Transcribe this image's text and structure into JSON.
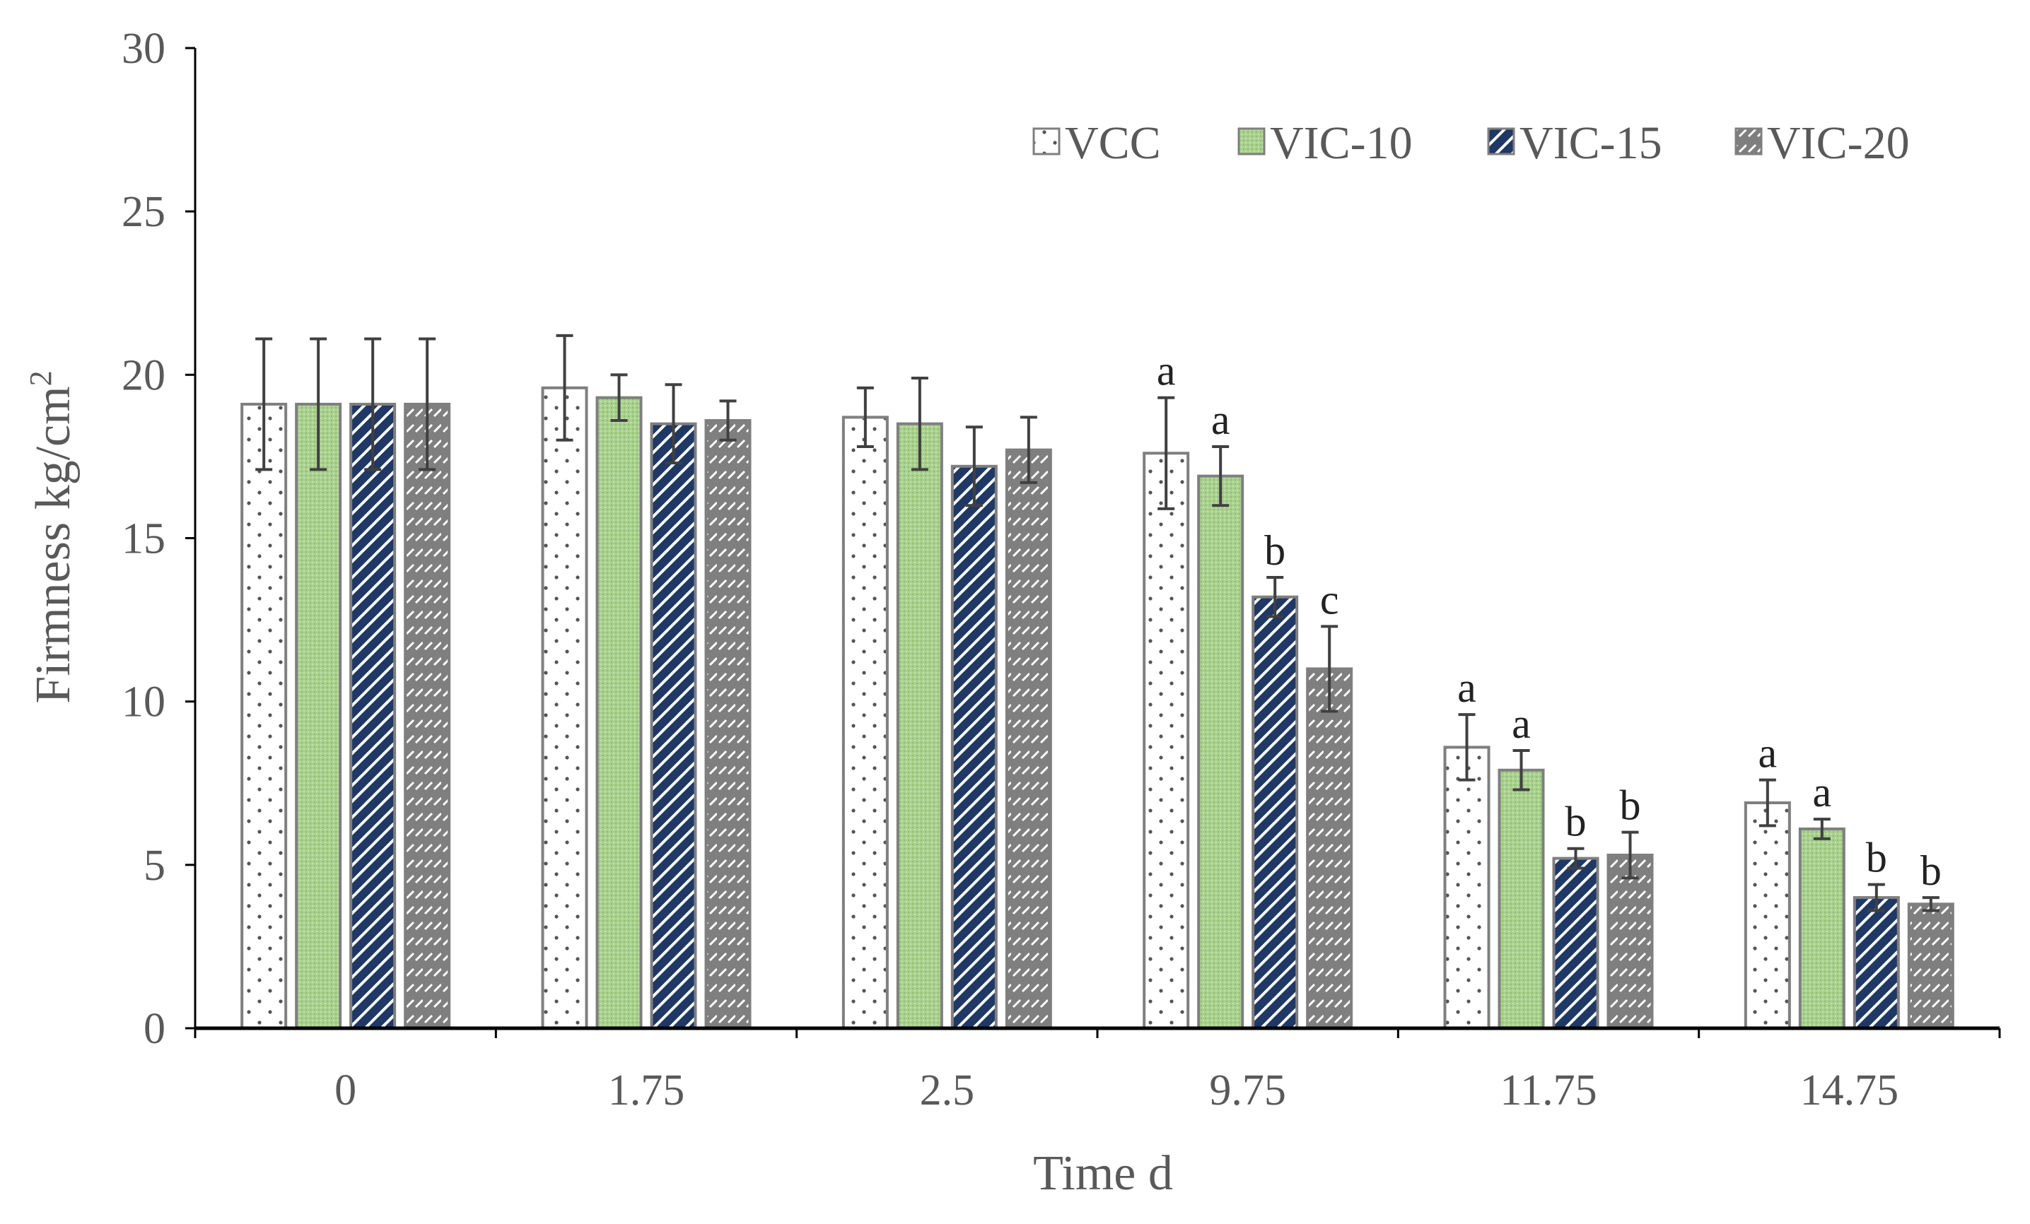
{
  "chart_data": {
    "type": "bar",
    "title": "",
    "xlabel": "Time d",
    "ylabel_main": "Firmness kg/cm",
    "ylabel_sup": "2",
    "ylim": [
      0,
      30
    ],
    "yticks": [
      0,
      5,
      10,
      15,
      20,
      25,
      30
    ],
    "categories": [
      "0",
      "1.75",
      "2.5",
      "9.75",
      "11.75",
      "14.75"
    ],
    "legend_position": "top-right",
    "series": [
      {
        "name": "VCC",
        "pattern": "dots",
        "values": [
          19.1,
          19.6,
          18.7,
          17.6,
          8.6,
          6.9
        ],
        "errors": [
          2.0,
          1.6,
          0.9,
          1.7,
          1.0,
          0.7
        ],
        "sig": [
          "",
          "",
          "",
          "a",
          "a",
          "a"
        ]
      },
      {
        "name": "VIC-10",
        "pattern": "green",
        "values": [
          19.1,
          19.3,
          18.5,
          16.9,
          7.9,
          6.1
        ],
        "errors": [
          2.0,
          0.7,
          1.4,
          0.9,
          0.6,
          0.3
        ],
        "sig": [
          "",
          "",
          "",
          "a",
          "a",
          "a"
        ]
      },
      {
        "name": "VIC-15",
        "pattern": "navy-stripes",
        "values": [
          19.1,
          18.5,
          17.2,
          13.2,
          5.2,
          4.0
        ],
        "errors": [
          2.0,
          1.2,
          1.2,
          0.6,
          0.3,
          0.4
        ],
        "sig": [
          "",
          "",
          "",
          "b",
          "b",
          "b"
        ]
      },
      {
        "name": "VIC-20",
        "pattern": "grey-dashes",
        "values": [
          19.1,
          18.6,
          17.7,
          11.0,
          5.3,
          3.8
        ],
        "errors": [
          2.0,
          0.6,
          1.0,
          1.3,
          0.7,
          0.2
        ],
        "sig": [
          "",
          "",
          "",
          "c",
          "b",
          "b"
        ]
      }
    ]
  },
  "colors": {
    "axis": "#000000",
    "text": "#595959",
    "error_bar": "#404040",
    "bar_border": "#7f7f7f",
    "green_fill": "#a9d18e",
    "navy_fill": "#1f3864",
    "grey_fill": "#7f7f7f"
  }
}
